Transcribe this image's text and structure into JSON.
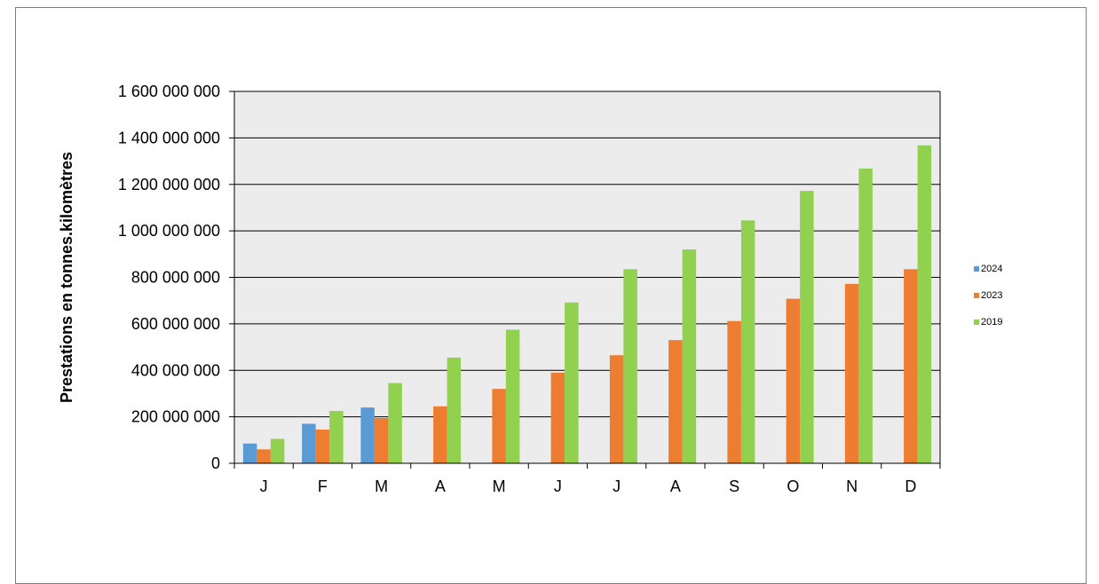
{
  "chart_data": {
    "type": "bar",
    "title": "",
    "xlabel": "",
    "ylabel": "Prestations  en tonnes.kilomètres",
    "categories": [
      "J",
      "F",
      "M",
      "A",
      "M",
      "J",
      "J",
      "A",
      "S",
      "O",
      "N",
      "D"
    ],
    "series": [
      {
        "name": "2024",
        "color": "#5b9bd5",
        "values": [
          85000000,
          170000000,
          240000000,
          null,
          null,
          null,
          null,
          null,
          null,
          null,
          null,
          null
        ]
      },
      {
        "name": "2023",
        "color": "#ed7d31",
        "values": [
          60000000,
          145000000,
          195000000,
          245000000,
          320000000,
          390000000,
          465000000,
          530000000,
          612000000,
          708000000,
          772000000,
          835000000
        ]
      },
      {
        "name": "2019",
        "color": "#92d050",
        "values": [
          105000000,
          225000000,
          345000000,
          455000000,
          575000000,
          692000000,
          835000000,
          920000000,
          1045000000,
          1172000000,
          1268000000,
          1368000000
        ]
      }
    ],
    "ylim": [
      0,
      1600000000
    ],
    "yticks": [
      0,
      200000000,
      400000000,
      600000000,
      800000000,
      1000000000,
      1200000000,
      1400000000,
      1600000000
    ],
    "ytick_labels": [
      "0",
      "200 000 000",
      "400 000 000",
      "600 000 000",
      "800 000 000",
      "1 000 000 000",
      "1 200 000 000",
      "1 400 000 000",
      "1 600 000 000"
    ],
    "grid": true,
    "legend_position": "right",
    "plot_background": "#ececec"
  }
}
